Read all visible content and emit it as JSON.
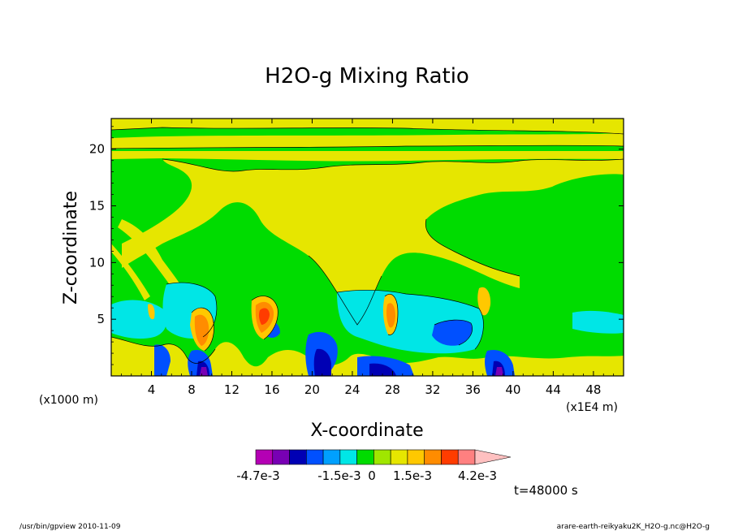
{
  "chart_data": {
    "type": "heatmap",
    "title": "H2O-g Mixing Ratio",
    "xlabel": "X-coordinate",
    "ylabel": "Z-coordinate",
    "x_unit_left": "(x1000 m)",
    "x_unit_right": "(x1E4 m)",
    "x_ticks": [
      "4",
      "8",
      "12",
      "16",
      "20",
      "24",
      "28",
      "32",
      "36",
      "40",
      "44",
      "48"
    ],
    "y_ticks": [
      "5",
      "10",
      "15",
      "20"
    ],
    "xlim": [
      0,
      51
    ],
    "ylim": [
      0,
      22.7
    ],
    "colorbar": {
      "colors": [
        "#b400b4",
        "#7800b4",
        "#0000b4",
        "#0050ff",
        "#00a0ff",
        "#00e6e6",
        "#00dc00",
        "#a0e600",
        "#e6e600",
        "#ffc800",
        "#ff8c00",
        "#ff3c00",
        "#ff8080",
        "#ffc0c0"
      ],
      "labels": [
        "-4.7e-3",
        "-1.5e-3",
        "0",
        "1.5e-3",
        "4.2e-3"
      ]
    },
    "time_label": "t=48000 s"
  },
  "footer": {
    "left": "/usr/bin/gpview   2010-11-09",
    "right": "arare-earth-reikyaku2K_H2O-g.nc@H2O-g"
  }
}
